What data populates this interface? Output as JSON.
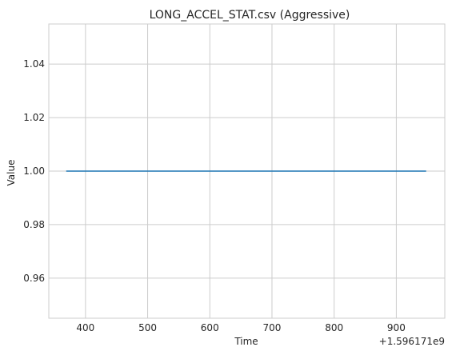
{
  "chart_data": {
    "type": "line",
    "title": "LONG_ACCEL_STAT.csv (Aggressive)",
    "xlabel": "Time",
    "ylabel": "Value",
    "x_offset_label": "+1.596171e9",
    "xlim": [
      341,
      978
    ],
    "ylim": [
      0.945,
      1.055
    ],
    "x_ticks": [
      400,
      500,
      600,
      700,
      800,
      900
    ],
    "y_ticks": [
      0.96,
      0.98,
      1.0,
      1.02,
      1.04
    ],
    "x_tick_labels": [
      "400",
      "500",
      "600",
      "700",
      "800",
      "900"
    ],
    "y_tick_labels": [
      "0.96",
      "0.98",
      "1.00",
      "1.02",
      "1.04"
    ],
    "grid": true,
    "series": [
      {
        "color": "#1f77b4",
        "x": [
          369,
          948
        ],
        "y": [
          1.0,
          1.0
        ]
      }
    ],
    "colors": {
      "background": "#ffffff",
      "grid": "#cccccc",
      "spine": "#cccccc",
      "text": "#262626"
    }
  }
}
